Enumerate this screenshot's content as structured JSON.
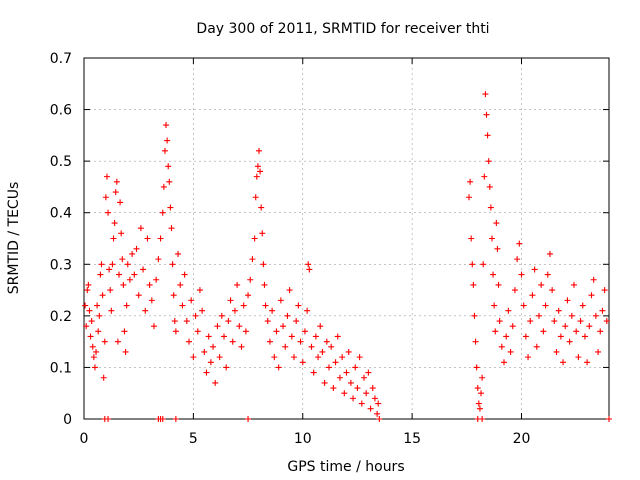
{
  "chart_data": {
    "type": "scatter",
    "title": "Day 300 of 2011, SRMTID for receiver thti",
    "xlabel": "GPS time / hours",
    "ylabel": "SRMTID / TECUs",
    "xlim": [
      0,
      24
    ],
    "ylim": [
      0,
      0.7
    ],
    "x_ticks": [
      "0",
      "5",
      "10",
      "15",
      "20"
    ],
    "y_ticks": [
      "0",
      "0.1",
      "0.2",
      "0.3",
      "0.4",
      "0.5",
      "0.6",
      "0.7"
    ],
    "grid": true,
    "marker": "+",
    "color": "#ff0000",
    "series": [
      {
        "name": "SRMTID",
        "points": [
          [
            0.05,
            0.22
          ],
          [
            0.1,
            0.18
          ],
          [
            0.15,
            0.25
          ],
          [
            0.2,
            0.26
          ],
          [
            0.25,
            0.21
          ],
          [
            0.3,
            0.16
          ],
          [
            0.35,
            0.19
          ],
          [
            0.4,
            0.14
          ],
          [
            0.45,
            0.12
          ],
          [
            0.5,
            0.1
          ],
          [
            0.55,
            0.13
          ],
          [
            0.6,
            0.22
          ],
          [
            0.65,
            0.17
          ],
          [
            0.7,
            0.2
          ],
          [
            0.75,
            0.28
          ],
          [
            0.8,
            0.3
          ],
          [
            0.85,
            0.24
          ],
          [
            0.9,
            0.08
          ],
          [
            0.95,
            0.15
          ],
          [
            1.0,
            0.43
          ],
          [
            1.05,
            0.47
          ],
          [
            1.1,
            0.4
          ],
          [
            1.15,
            0.29
          ],
          [
            1.2,
            0.25
          ],
          [
            1.25,
            0.21
          ],
          [
            1.3,
            0.3
          ],
          [
            1.35,
            0.35
          ],
          [
            1.4,
            0.38
          ],
          [
            1.45,
            0.44
          ],
          [
            1.5,
            0.46
          ],
          [
            1.55,
            0.15
          ],
          [
            1.6,
            0.28
          ],
          [
            1.65,
            0.42
          ],
          [
            1.7,
            0.36
          ],
          [
            1.75,
            0.31
          ],
          [
            1.8,
            0.26
          ],
          [
            1.85,
            0.17
          ],
          [
            1.9,
            0.13
          ],
          [
            1.95,
            0.22
          ],
          [
            2.0,
            0.3
          ],
          [
            2.1,
            0.27
          ],
          [
            2.2,
            0.32
          ],
          [
            2.3,
            0.28
          ],
          [
            2.4,
            0.33
          ],
          [
            2.5,
            0.24
          ],
          [
            2.6,
            0.37
          ],
          [
            2.7,
            0.29
          ],
          [
            2.8,
            0.21
          ],
          [
            2.9,
            0.35
          ],
          [
            3.0,
            0.26
          ],
          [
            3.1,
            0.23
          ],
          [
            3.2,
            0.18
          ],
          [
            3.3,
            0.27
          ],
          [
            3.4,
            0.31
          ],
          [
            3.5,
            0.35
          ],
          [
            3.6,
            0.4
          ],
          [
            3.65,
            0.45
          ],
          [
            3.7,
            0.52
          ],
          [
            3.75,
            0.57
          ],
          [
            3.8,
            0.54
          ],
          [
            3.85,
            0.49
          ],
          [
            3.9,
            0.46
          ],
          [
            3.95,
            0.41
          ],
          [
            4.0,
            0.37
          ],
          [
            4.05,
            0.3
          ],
          [
            4.1,
            0.24
          ],
          [
            4.15,
            0.19
          ],
          [
            4.2,
            0.17
          ],
          [
            4.3,
            0.32
          ],
          [
            4.4,
            0.26
          ],
          [
            4.5,
            0.22
          ],
          [
            4.6,
            0.28
          ],
          [
            4.7,
            0.19
          ],
          [
            4.8,
            0.15
          ],
          [
            4.9,
            0.23
          ],
          [
            5.0,
            0.12
          ],
          [
            5.1,
            0.2
          ],
          [
            5.2,
            0.17
          ],
          [
            5.3,
            0.25
          ],
          [
            5.4,
            0.21
          ],
          [
            5.5,
            0.13
          ],
          [
            5.6,
            0.09
          ],
          [
            5.7,
            0.16
          ],
          [
            5.8,
            0.11
          ],
          [
            5.9,
            0.14
          ],
          [
            6.0,
            0.07
          ],
          [
            6.1,
            0.18
          ],
          [
            6.2,
            0.12
          ],
          [
            6.3,
            0.2
          ],
          [
            6.4,
            0.16
          ],
          [
            6.5,
            0.1
          ],
          [
            6.6,
            0.19
          ],
          [
            6.7,
            0.23
          ],
          [
            6.8,
            0.15
          ],
          [
            6.9,
            0.21
          ],
          [
            7.0,
            0.26
          ],
          [
            7.1,
            0.18
          ],
          [
            7.2,
            0.14
          ],
          [
            7.3,
            0.22
          ],
          [
            7.4,
            0.17
          ],
          [
            7.5,
            0.24
          ],
          [
            7.6,
            0.27
          ],
          [
            7.7,
            0.31
          ],
          [
            7.8,
            0.35
          ],
          [
            7.85,
            0.43
          ],
          [
            7.9,
            0.47
          ],
          [
            7.95,
            0.49
          ],
          [
            8.0,
            0.52
          ],
          [
            8.05,
            0.48
          ],
          [
            8.1,
            0.41
          ],
          [
            8.15,
            0.36
          ],
          [
            8.2,
            0.3
          ],
          [
            8.25,
            0.26
          ],
          [
            8.3,
            0.22
          ],
          [
            8.4,
            0.19
          ],
          [
            8.5,
            0.15
          ],
          [
            8.6,
            0.21
          ],
          [
            8.7,
            0.12
          ],
          [
            8.8,
            0.17
          ],
          [
            8.9,
            0.1
          ],
          [
            9.0,
            0.23
          ],
          [
            9.1,
            0.18
          ],
          [
            9.2,
            0.14
          ],
          [
            9.3,
            0.2
          ],
          [
            9.4,
            0.25
          ],
          [
            9.5,
            0.16
          ],
          [
            9.6,
            0.12
          ],
          [
            9.7,
            0.19
          ],
          [
            9.8,
            0.22
          ],
          [
            9.9,
            0.15
          ],
          [
            10.0,
            0.11
          ],
          [
            10.1,
            0.17
          ],
          [
            10.2,
            0.21
          ],
          [
            10.25,
            0.3
          ],
          [
            10.3,
            0.29
          ],
          [
            10.4,
            0.14
          ],
          [
            10.5,
            0.09
          ],
          [
            10.6,
            0.16
          ],
          [
            10.7,
            0.12
          ],
          [
            10.8,
            0.18
          ],
          [
            10.9,
            0.13
          ],
          [
            11.0,
            0.07
          ],
          [
            11.1,
            0.15
          ],
          [
            11.2,
            0.1
          ],
          [
            11.3,
            0.14
          ],
          [
            11.4,
            0.06
          ],
          [
            11.5,
            0.11
          ],
          [
            11.6,
            0.16
          ],
          [
            11.7,
            0.08
          ],
          [
            11.8,
            0.12
          ],
          [
            11.9,
            0.05
          ],
          [
            12.0,
            0.09
          ],
          [
            12.1,
            0.13
          ],
          [
            12.2,
            0.07
          ],
          [
            12.3,
            0.04
          ],
          [
            12.4,
            0.1
          ],
          [
            12.5,
            0.06
          ],
          [
            12.6,
            0.12
          ],
          [
            12.7,
            0.03
          ],
          [
            12.8,
            0.08
          ],
          [
            12.9,
            0.05
          ],
          [
            13.0,
            0.09
          ],
          [
            13.1,
            0.02
          ],
          [
            13.2,
            0.06
          ],
          [
            13.3,
            0.04
          ],
          [
            13.4,
            0.01
          ],
          [
            13.45,
            0.03
          ],
          [
            13.5,
            0.0
          ],
          [
            17.6,
            0.43
          ],
          [
            17.65,
            0.46
          ],
          [
            17.7,
            0.35
          ],
          [
            17.75,
            0.3
          ],
          [
            17.8,
            0.26
          ],
          [
            17.85,
            0.2
          ],
          [
            17.9,
            0.15
          ],
          [
            17.95,
            0.1
          ],
          [
            18.0,
            0.06
          ],
          [
            18.05,
            0.03
          ],
          [
            18.1,
            0.02
          ],
          [
            18.15,
            0.05
          ],
          [
            18.2,
            0.08
          ],
          [
            18.25,
            0.3
          ],
          [
            18.3,
            0.47
          ],
          [
            18.35,
            0.63
          ],
          [
            18.4,
            0.59
          ],
          [
            18.45,
            0.55
          ],
          [
            18.5,
            0.5
          ],
          [
            18.55,
            0.45
          ],
          [
            18.6,
            0.41
          ],
          [
            18.65,
            0.35
          ],
          [
            18.7,
            0.28
          ],
          [
            18.75,
            0.22
          ],
          [
            18.8,
            0.17
          ],
          [
            18.85,
            0.38
          ],
          [
            18.9,
            0.33
          ],
          [
            18.95,
            0.26
          ],
          [
            19.0,
            0.19
          ],
          [
            19.1,
            0.14
          ],
          [
            19.2,
            0.11
          ],
          [
            19.3,
            0.16
          ],
          [
            19.4,
            0.21
          ],
          [
            19.5,
            0.13
          ],
          [
            19.6,
            0.18
          ],
          [
            19.7,
            0.25
          ],
          [
            19.8,
            0.31
          ],
          [
            19.9,
            0.34
          ],
          [
            20.0,
            0.28
          ],
          [
            20.1,
            0.22
          ],
          [
            20.2,
            0.16
          ],
          [
            20.3,
            0.12
          ],
          [
            20.4,
            0.19
          ],
          [
            20.5,
            0.24
          ],
          [
            20.6,
            0.29
          ],
          [
            20.7,
            0.14
          ],
          [
            20.8,
            0.2
          ],
          [
            20.9,
            0.26
          ],
          [
            21.0,
            0.17
          ],
          [
            21.1,
            0.22
          ],
          [
            21.2,
            0.28
          ],
          [
            21.3,
            0.32
          ],
          [
            21.4,
            0.25
          ],
          [
            21.5,
            0.19
          ],
          [
            21.6,
            0.13
          ],
          [
            21.7,
            0.21
          ],
          [
            21.8,
            0.16
          ],
          [
            21.9,
            0.11
          ],
          [
            22.0,
            0.18
          ],
          [
            22.1,
            0.23
          ],
          [
            22.2,
            0.15
          ],
          [
            22.3,
            0.2
          ],
          [
            22.4,
            0.26
          ],
          [
            22.5,
            0.17
          ],
          [
            22.6,
            0.12
          ],
          [
            22.7,
            0.19
          ],
          [
            22.8,
            0.22
          ],
          [
            22.9,
            0.16
          ],
          [
            23.0,
            0.11
          ],
          [
            23.1,
            0.18
          ],
          [
            23.2,
            0.24
          ],
          [
            23.3,
            0.27
          ],
          [
            23.4,
            0.2
          ],
          [
            23.5,
            0.13
          ],
          [
            23.6,
            0.17
          ],
          [
            23.7,
            0.21
          ],
          [
            23.8,
            0.25
          ],
          [
            23.9,
            0.19
          ],
          [
            24.0,
            0.0
          ],
          [
            0.95,
            0.0
          ],
          [
            1.1,
            0.0
          ],
          [
            3.4,
            0.0
          ],
          [
            3.5,
            0.0
          ],
          [
            3.6,
            0.0
          ],
          [
            4.2,
            0.0
          ],
          [
            7.5,
            0.0
          ],
          [
            18.0,
            0.0
          ],
          [
            18.2,
            0.0
          ]
        ]
      }
    ]
  }
}
